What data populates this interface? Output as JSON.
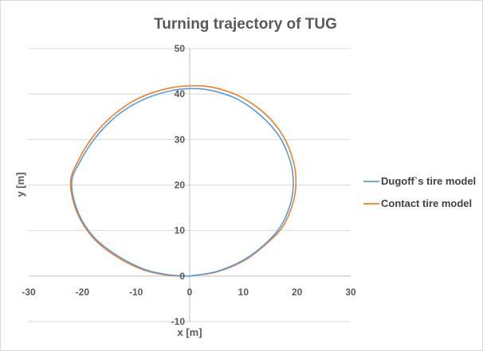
{
  "chart_data": {
    "type": "scatter",
    "title": "Turning trajectory of TUG",
    "xlabel": "x [m]",
    "ylabel": "y [m]",
    "xlim": [
      -30,
      30
    ],
    "ylim": [
      -10,
      50
    ],
    "xticks": [
      -30,
      -20,
      -10,
      0,
      10,
      20,
      30
    ],
    "yticks": [
      -10,
      0,
      10,
      20,
      30,
      40,
      50
    ],
    "grid": "horizontal",
    "legend_position": "right",
    "series": [
      {
        "name": "Dugoff`s tire model",
        "color": "#5b9bd5",
        "x": [
          0,
          5.0,
          10.0,
          14.0,
          17.0,
          18.8,
          19.3,
          18.8,
          16.8,
          13.5,
          9.0,
          4.0,
          0,
          -4.0,
          -9.0,
          -13.5,
          -17.5,
          -20.5,
          -22.0,
          -20.8,
          -17.8,
          -13.5,
          -8.5,
          -4.0,
          0
        ],
        "y": [
          0,
          1.0,
          3.5,
          7.0,
          11.0,
          16.0,
          20.5,
          25.0,
          30.5,
          35.0,
          38.8,
          40.8,
          41.2,
          40.6,
          38.6,
          35.3,
          30.5,
          25.0,
          20.5,
          14.0,
          8.5,
          4.5,
          1.5,
          0.3,
          0
        ]
      },
      {
        "name": "Contact tire model",
        "color": "#ed7d31",
        "x": [
          0,
          5.0,
          10.0,
          14.0,
          17.3,
          19.2,
          19.8,
          19.3,
          17.3,
          14.0,
          9.3,
          4.2,
          0,
          -4.2,
          -9.3,
          -13.8,
          -17.8,
          -20.8,
          -22.2,
          -21.0,
          -18.0,
          -13.7,
          -8.7,
          -4.1,
          0
        ],
        "y": [
          0,
          0.9,
          3.3,
          6.8,
          10.8,
          15.9,
          20.5,
          25.3,
          31.0,
          35.7,
          39.5,
          41.5,
          41.8,
          41.2,
          39.2,
          35.8,
          31.0,
          25.3,
          20.5,
          14.0,
          8.4,
          4.3,
          1.4,
          0.2,
          0
        ]
      }
    ]
  }
}
